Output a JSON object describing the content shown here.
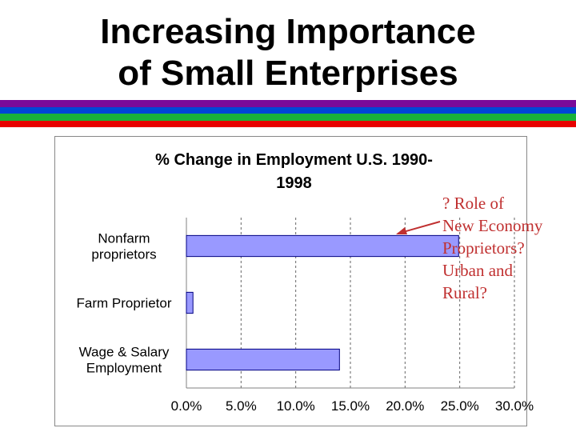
{
  "slide": {
    "title_line1": "Increasing Importance",
    "title_line2": "of Small Enterprises",
    "stripe_colors": [
      "#7a0a9a",
      "#0047d6",
      "#19b23a",
      "#e80000"
    ]
  },
  "annotation": {
    "lines": [
      "? Role of",
      "New Economy",
      "Proprietors?",
      "Urban and",
      "Rural?"
    ],
    "color": "#c03030"
  },
  "chart_data": {
    "type": "bar",
    "orientation": "horizontal",
    "title_line1": "% Change in Employment U.S. 1990-",
    "title_line2": "1998",
    "categories": [
      "Nonfarm proprietors",
      "Farm Proprietor",
      "Wage & Salary Employment"
    ],
    "category_label_lines": [
      [
        "Nonfarm",
        "proprietors"
      ],
      [
        "Farm Proprietor"
      ],
      [
        "Wage & Salary",
        "Employment"
      ]
    ],
    "values": [
      24.9,
      0.6,
      14.0
    ],
    "xlim": [
      0,
      30
    ],
    "xticks": [
      "0.0%",
      "5.0%",
      "10.0%",
      "15.0%",
      "20.0%",
      "25.0%",
      "30.0%"
    ],
    "grid": "vertical-dashed",
    "bar_color": "#9999ff",
    "bar_edge": "#000080"
  }
}
